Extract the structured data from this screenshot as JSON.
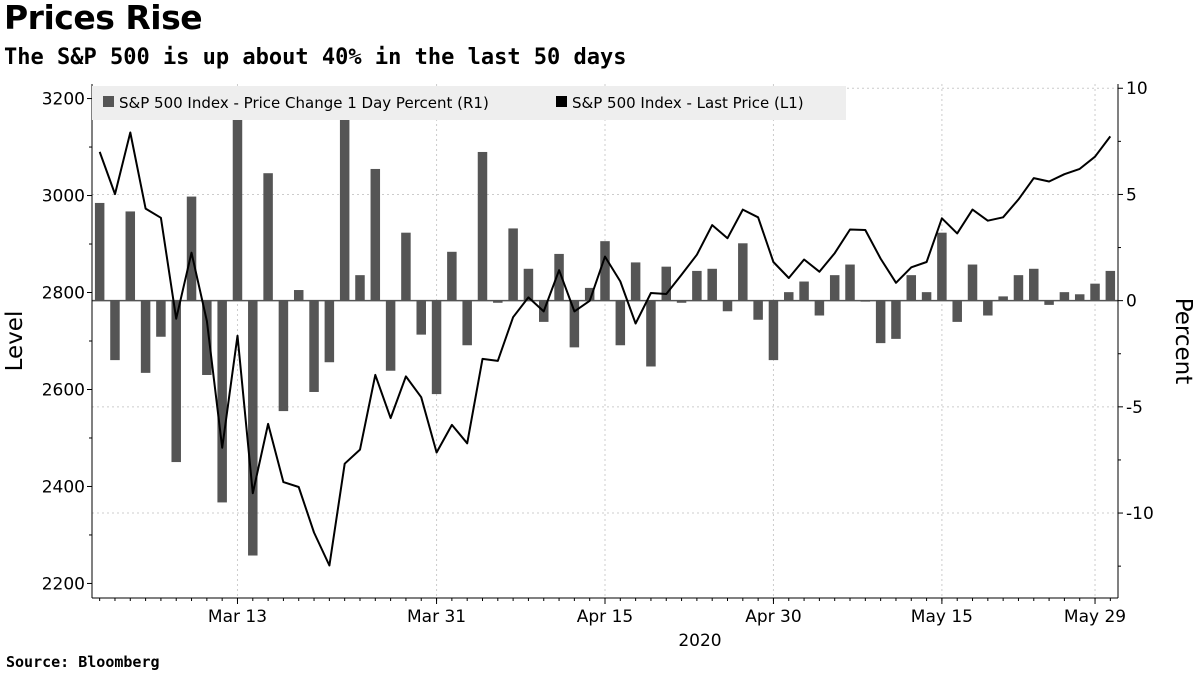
{
  "title": "Prices Rise",
  "subtitle": "The S&P 500 is up about 40% in the last 50 days",
  "source": "Source: Bloomberg",
  "chart_data": {
    "type": "bar+line",
    "left_axis": {
      "label": "Level",
      "ylim": [
        2170,
        3230
      ],
      "ticks": [
        2200,
        2400,
        2600,
        2800,
        3000,
        3200
      ]
    },
    "right_axis": {
      "label": "Percent",
      "ylim": [
        -14,
        10.2
      ],
      "ticks": [
        10,
        5,
        0,
        -5,
        -10
      ]
    },
    "x_ticks": [
      "Mar 13",
      "Mar 31",
      "Apr 15",
      "Apr 30",
      "May 15",
      "May 29"
    ],
    "x_year_label": "2020",
    "grid": true,
    "legend_position": "top-left",
    "colors": {
      "bars": "#555555",
      "line": "#000000",
      "grid": "#cccccc",
      "legend_bg": "#eeeeee"
    },
    "series": [
      {
        "name": "S&P 500 Index - Price Change 1 Day Percent (R1)",
        "type": "bar",
        "axis": "right",
        "values": [
          4.6,
          -2.8,
          4.2,
          -3.4,
          -1.7,
          -7.6,
          4.9,
          -3.5,
          -9.5,
          9.3,
          -12,
          6.0,
          -5.2,
          0.5,
          -4.3,
          -2.9,
          9.4,
          1.2,
          6.2,
          -3.3,
          3.2,
          -1.6,
          -4.4,
          2.3,
          -2.1,
          7.0,
          -0.1,
          3.4,
          1.5,
          -1.0,
          2.2,
          -2.2,
          0.6,
          2.8,
          -2.1,
          1.8,
          -3.1,
          1.6,
          -0.1,
          1.4,
          1.5,
          -0.5,
          2.7,
          -0.9,
          -2.8,
          0.4,
          0.9,
          -0.7,
          1.2,
          1.7,
          -0.04,
          -2.0,
          -1.8,
          1.2,
          0.4,
          3.2,
          -1.0,
          1.7,
          -0.7,
          0.2,
          1.2,
          1.5,
          -0.2,
          0.4,
          0.3,
          0.8,
          1.4
        ]
      },
      {
        "name": "S&P 500 Index - Last Price (L1)",
        "type": "line",
        "axis": "left",
        "values": [
          3090,
          3003,
          3130,
          2973,
          2954,
          2746,
          2882,
          2741,
          2480,
          2711,
          2386,
          2529,
          2409,
          2399,
          2305,
          2237,
          2447,
          2476,
          2630,
          2541,
          2627,
          2584,
          2470,
          2527,
          2489,
          2663,
          2659,
          2749,
          2790,
          2761,
          2846,
          2761,
          2783,
          2874,
          2823,
          2736,
          2799,
          2797,
          2837,
          2878,
          2939,
          2912,
          2971,
          2955,
          2863,
          2830,
          2868,
          2843,
          2881,
          2930,
          2929,
          2870,
          2820,
          2852,
          2863,
          2953,
          2922,
          2971,
          2948,
          2955,
          2992,
          3036,
          3029,
          3044,
          3055,
          3080,
          3122
        ]
      }
    ]
  }
}
